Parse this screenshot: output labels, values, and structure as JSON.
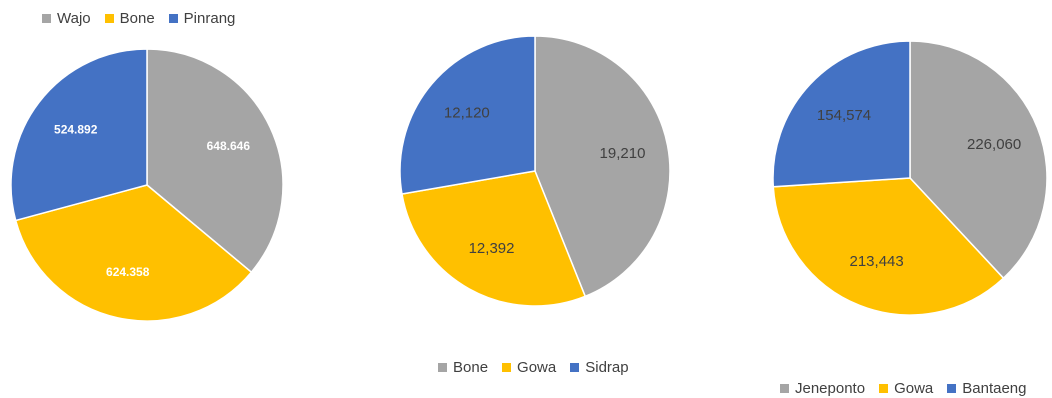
{
  "chart_data": [
    {
      "type": "pie",
      "title": "",
      "legend_position": "top-left",
      "categories": [
        "Wajo",
        "Bone",
        "Pinrang"
      ],
      "values": [
        648646,
        624358,
        524892
      ],
      "value_labels": [
        "648.646",
        "624.358",
        "524.892"
      ],
      "colors": [
        "#a5a5a5",
        "#ffc000",
        "#4472c4"
      ],
      "label_style": "bold-white"
    },
    {
      "type": "pie",
      "title": "",
      "legend_position": "bottom",
      "categories": [
        "Bone",
        "Gowa",
        "Sidrap"
      ],
      "values": [
        19210,
        12392,
        12120
      ],
      "value_labels": [
        "19,210",
        "12,392",
        "12,120"
      ],
      "colors": [
        "#a5a5a5",
        "#ffc000",
        "#4472c4"
      ],
      "label_style": "dark"
    },
    {
      "type": "pie",
      "title": "",
      "legend_position": "bottom",
      "categories": [
        "Jeneponto",
        "Gowa",
        "Bantaeng"
      ],
      "values": [
        226060,
        213443,
        154574
      ],
      "value_labels": [
        "226,060",
        "213,443",
        "154,574"
      ],
      "colors": [
        "#a5a5a5",
        "#ffc000",
        "#4472c4"
      ],
      "label_style": "dark"
    }
  ]
}
